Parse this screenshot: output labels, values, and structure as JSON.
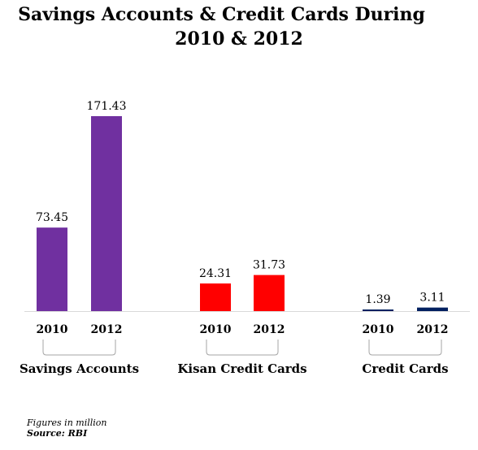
{
  "chart_data": {
    "type": "bar",
    "title_line1": "Savings Accounts & Credit Cards During",
    "title_line2": "2010 & 2012",
    "groups": [
      {
        "name": "Savings Accounts",
        "color": "#7030A0",
        "bars": [
          {
            "label": "2010",
            "value": 73.45,
            "display": "73.45"
          },
          {
            "label": "2012",
            "value": 171.43,
            "display": "171.43"
          }
        ]
      },
      {
        "name": "Kisan Credit Cards",
        "color": "#FF0000",
        "bars": [
          {
            "label": "2010",
            "value": 24.31,
            "display": "24.31"
          },
          {
            "label": "2012",
            "value": 31.73,
            "display": "31.73"
          }
        ]
      },
      {
        "name": "Credit Cards",
        "color": "#002060",
        "bars": [
          {
            "label": "2010",
            "value": 1.39,
            "display": "1.39"
          },
          {
            "label": "2012",
            "value": 3.11,
            "display": "3.11"
          }
        ]
      }
    ],
    "ylim": [
      0,
      171.43
    ],
    "grid": false,
    "legend": "none"
  },
  "footnote": {
    "unit_note": "Figures in million",
    "source": "Source: RBI"
  }
}
